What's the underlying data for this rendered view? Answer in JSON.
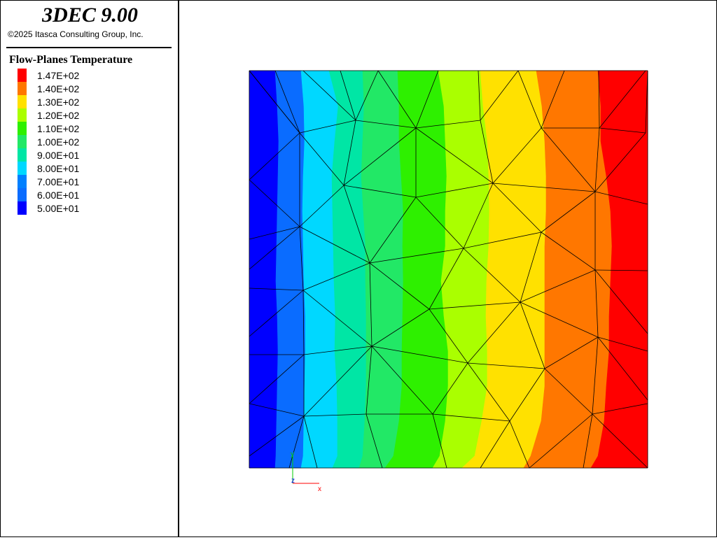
{
  "app": {
    "title": "3DEC 9.00",
    "copyright": "©2025 Itasca Consulting Group, Inc."
  },
  "legend": {
    "title": "Flow-Planes Temperature",
    "items": [
      {
        "label": "1.47E+02",
        "color": "#ff0000"
      },
      {
        "label": "1.40E+02",
        "color": "#ff7700"
      },
      {
        "label": "1.30E+02",
        "color": "#ffe100"
      },
      {
        "label": "1.20E+02",
        "color": "#aaff00"
      },
      {
        "label": "1.10E+02",
        "color": "#2ef000"
      },
      {
        "label": "1.00E+02",
        "color": "#22e866"
      },
      {
        "label": "9.00E+01",
        "color": "#00e6a5"
      },
      {
        "label": "8.00E+01",
        "color": "#00d8ff"
      },
      {
        "label": "7.00E+01",
        "color": "#0080ff"
      },
      {
        "label": "6.00E+01",
        "color": "#0a6cff"
      },
      {
        "label": "5.00E+01",
        "color": "#0000ff"
      }
    ]
  },
  "plot": {
    "bands": [
      {
        "color": "#0000ff"
      },
      {
        "color": "#0a6cff"
      },
      {
        "color": "#00d8ff"
      },
      {
        "color": "#00e6a5"
      },
      {
        "color": "#22e866"
      },
      {
        "color": "#2ef000"
      },
      {
        "color": "#aaff00"
      },
      {
        "color": "#ffe100"
      },
      {
        "color": "#ff7700"
      },
      {
        "color": "#ff0000"
      }
    ],
    "mesh_color": "#000000"
  },
  "axes": {
    "x_label": "x",
    "y_label": "y",
    "z_label": "z",
    "x_color": "#ff0000",
    "y_color": "#00cc00",
    "z_color": "#0000ff"
  }
}
